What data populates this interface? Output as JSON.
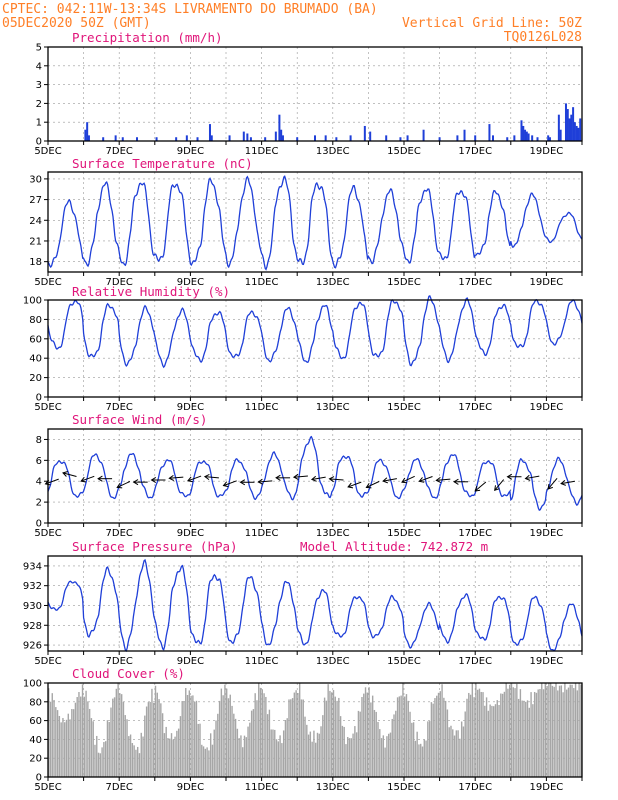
{
  "header": {
    "line1": "CPTEC:   042:11W-13:34S  LIVRAMENTO DO BRUMADO (BA)",
    "line2_left": "05DEC2020 50Z (GMT)",
    "line2_right": "Vertical Grid Line: 50Z",
    "line3_right": "TQ0126L028"
  },
  "colors": {
    "header": "#ff7f27",
    "panel_title": "#e0157a",
    "series": "#1f3fd8",
    "cloud": "#a6a6a6",
    "bar": "#1f3fd8"
  },
  "x_ticks": [
    "5DEC",
    "7DEC",
    "9DEC",
    "11DEC",
    "13DEC",
    "15DEC",
    "17DEC",
    "19DEC"
  ],
  "chart_data": [
    {
      "type": "bar",
      "title": "Precipitation (mm/h)",
      "ylim": [
        0,
        5
      ],
      "yticks": [
        0,
        1,
        2,
        3,
        4,
        5
      ],
      "x_unit": "day",
      "x_range": [
        5,
        20
      ],
      "points": [
        [
          6.05,
          0.6
        ],
        [
          6.1,
          1.0
        ],
        [
          6.15,
          0.3
        ],
        [
          6.55,
          0.2
        ],
        [
          6.9,
          0.3
        ],
        [
          7.1,
          0.2
        ],
        [
          7.5,
          0.2
        ],
        [
          8.05,
          0.2
        ],
        [
          8.6,
          0.2
        ],
        [
          8.9,
          0.3
        ],
        [
          9.2,
          0.2
        ],
        [
          9.55,
          0.9
        ],
        [
          9.6,
          0.3
        ],
        [
          10.1,
          0.3
        ],
        [
          10.5,
          0.5
        ],
        [
          10.6,
          0.4
        ],
        [
          10.7,
          0.2
        ],
        [
          11.1,
          0.2
        ],
        [
          11.4,
          0.5
        ],
        [
          11.5,
          1.4
        ],
        [
          11.55,
          0.6
        ],
        [
          11.6,
          0.3
        ],
        [
          12.0,
          0.2
        ],
        [
          12.5,
          0.3
        ],
        [
          12.8,
          0.3
        ],
        [
          13.1,
          0.2
        ],
        [
          13.5,
          0.3
        ],
        [
          13.9,
          0.8
        ],
        [
          14.05,
          0.5
        ],
        [
          14.5,
          0.3
        ],
        [
          14.9,
          0.2
        ],
        [
          15.1,
          0.3
        ],
        [
          15.55,
          0.6
        ],
        [
          16.0,
          0.2
        ],
        [
          16.5,
          0.3
        ],
        [
          16.7,
          0.6
        ],
        [
          17.0,
          0.3
        ],
        [
          17.4,
          0.9
        ],
        [
          17.5,
          0.3
        ],
        [
          17.9,
          0.2
        ],
        [
          18.1,
          0.3
        ],
        [
          18.3,
          1.1
        ],
        [
          18.35,
          0.8
        ],
        [
          18.4,
          0.6
        ],
        [
          18.45,
          0.5
        ],
        [
          18.5,
          0.4
        ],
        [
          18.6,
          0.3
        ],
        [
          18.75,
          0.2
        ],
        [
          19.05,
          0.3
        ],
        [
          19.1,
          0.2
        ],
        [
          19.35,
          1.4
        ],
        [
          19.4,
          0.6
        ],
        [
          19.55,
          2.0
        ],
        [
          19.6,
          1.7
        ],
        [
          19.65,
          1.2
        ],
        [
          19.7,
          1.4
        ],
        [
          19.75,
          1.8
        ],
        [
          19.8,
          1.0
        ],
        [
          19.85,
          0.8
        ],
        [
          19.9,
          0.7
        ],
        [
          19.95,
          1.2
        ]
      ]
    },
    {
      "type": "line",
      "title": "Surface Temperature (nC)",
      "ylim": [
        16.5,
        31
      ],
      "yticks": [
        18,
        21,
        24,
        27,
        30
      ],
      "x_unit": "day",
      "x_range": [
        5,
        20
      ],
      "daily_max": [
        26.5,
        29.0,
        29.5,
        29.5,
        29.5,
        29.5,
        30.0,
        29.5,
        28.5,
        28.0,
        28.5,
        28.5,
        28.0,
        27.5,
        25.0
      ],
      "daily_min": [
        17.5,
        18.0,
        17.8,
        17.9,
        17.7,
        18.0,
        17.6,
        17.5,
        17.4,
        18.3,
        18.2,
        18.1,
        18.9,
        20.5,
        21.0
      ]
    },
    {
      "type": "line",
      "title": "Relative Humidity (%)",
      "ylim": [
        0,
        100
      ],
      "yticks": [
        0,
        20,
        40,
        60,
        80,
        100
      ],
      "x_unit": "day",
      "x_range": [
        5,
        20
      ],
      "daily_max": [
        100,
        95,
        90,
        88,
        88,
        88,
        90,
        93,
        98,
        100,
        100,
        98,
        95,
        100,
        98
      ],
      "daily_min": [
        50,
        40,
        35,
        35,
        38,
        40,
        38,
        38,
        40,
        40,
        35,
        40,
        45,
        50,
        55
      ]
    },
    {
      "type": "line",
      "title": "Surface Wind (m/s)",
      "ylim": [
        0,
        9
      ],
      "yticks": [
        0,
        2,
        4,
        6,
        8
      ],
      "x_unit": "day",
      "x_range": [
        5,
        20
      ],
      "daily_max": [
        6.0,
        6.5,
        6.5,
        6.0,
        6.0,
        6.0,
        6.5,
        8.0,
        6.5,
        6.0,
        6.0,
        6.5,
        6.0,
        6.0,
        6.0
      ],
      "daily_min": [
        2.5,
        2.5,
        2.5,
        2.5,
        2.5,
        2.5,
        2.5,
        2.5,
        2.5,
        2.5,
        2.5,
        2.5,
        2.5,
        1.5,
        2.0
      ],
      "vector_directions_deg": [
        200,
        165,
        200,
        180,
        205,
        180,
        180,
        185,
        200,
        175,
        200,
        180,
        185,
        180,
        185,
        190,
        175,
        200,
        205,
        190,
        205,
        200,
        185,
        180,
        220,
        230,
        180,
        190,
        230,
        190
      ]
    },
    {
      "type": "line",
      "title": "Surface Pressure (hPa)",
      "annotation": "Model Altitude: 742.872 m",
      "ylim": [
        925.4,
        935
      ],
      "yticks": [
        926,
        928,
        930,
        932,
        934
      ],
      "x_unit": "day",
      "x_range": [
        5,
        20
      ],
      "daily_max": [
        932.5,
        933.5,
        934.0,
        933.8,
        933.2,
        932.8,
        932.2,
        931.5,
        931.0,
        930.8,
        930.0,
        931.0,
        931.0,
        930.8,
        930.0
      ],
      "daily_min": [
        929.5,
        927.0,
        926.0,
        926.0,
        926.0,
        926.2,
        926.2,
        926.2,
        926.8,
        926.8,
        926.0,
        926.5,
        926.5,
        926.0,
        925.6
      ]
    },
    {
      "type": "area",
      "title": "Cloud Cover (%)",
      "ylim": [
        0,
        100
      ],
      "yticks": [
        0,
        20,
        40,
        60,
        80,
        100
      ],
      "x_unit": "day",
      "x_range": [
        5,
        20
      ],
      "daily_max": [
        90,
        95,
        90,
        92,
        92,
        95,
        92,
        95,
        92,
        92,
        90,
        95,
        97,
        100,
        100
      ],
      "daily_min": [
        60,
        30,
        30,
        40,
        30,
        40,
        40,
        40,
        40,
        40,
        35,
        45,
        75,
        80,
        95
      ]
    }
  ]
}
